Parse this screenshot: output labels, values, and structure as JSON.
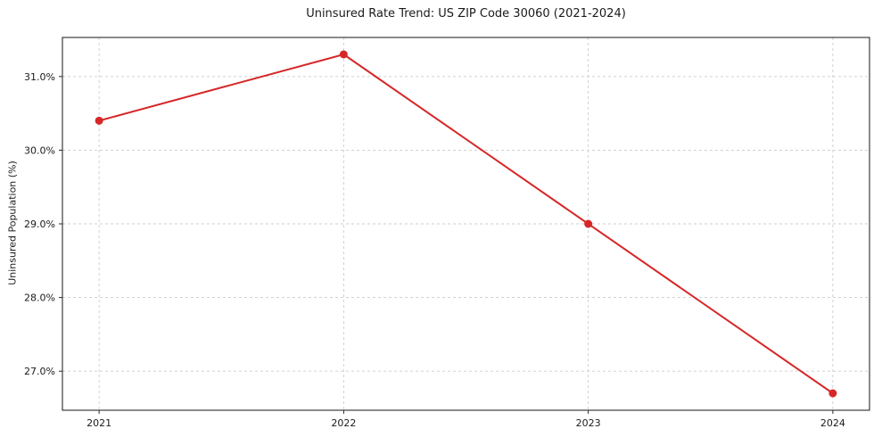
{
  "chart_data": {
    "type": "line",
    "title": "Uninsured Rate Trend: US ZIP Code 30060 (2021-2024)",
    "xlabel": "",
    "ylabel": "Uninsured Population (%)",
    "x": [
      2021,
      2022,
      2023,
      2024
    ],
    "x_tick_labels": [
      "2021",
      "2022",
      "2023",
      "2024"
    ],
    "series": [
      {
        "name": "Uninsured Population (%)",
        "values": [
          30.4,
          31.3,
          29.0,
          26.7
        ]
      }
    ],
    "y_ticks": [
      27.0,
      28.0,
      29.0,
      30.0,
      31.0
    ],
    "y_tick_labels": [
      "27.0%",
      "28.0%",
      "29.0%",
      "30.0%",
      "31.0%"
    ],
    "ylim_display": [
      26.47,
      31.53
    ],
    "grid": true,
    "grid_style": "dashed",
    "legend_position": "none",
    "colors": {
      "line": "#d62728",
      "marker": "#d62728",
      "grid": "#cccccc",
      "axis": "#2b2b2b",
      "background": "#ffffff"
    }
  }
}
